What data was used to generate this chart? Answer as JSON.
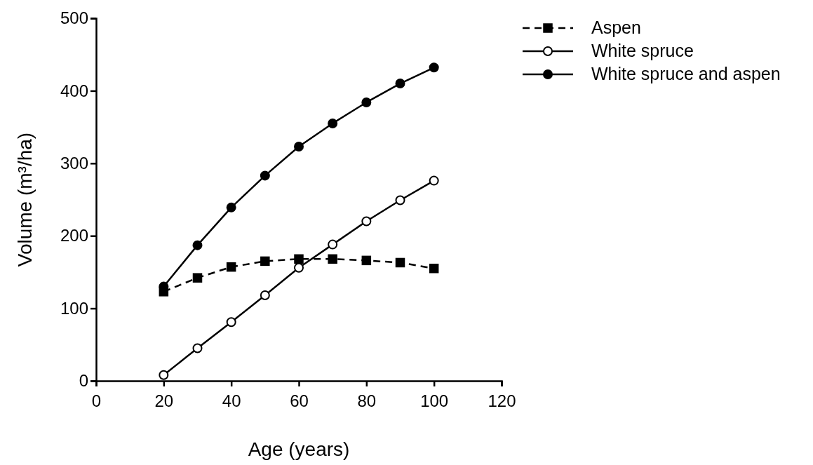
{
  "chart_data": {
    "type": "line",
    "xlabel": "Age (years)",
    "ylabel": "Volume (m³/ha)",
    "x": [
      20,
      30,
      40,
      50,
      60,
      70,
      80,
      90,
      100
    ],
    "xlim": [
      0,
      120
    ],
    "xticks": [
      0,
      20,
      40,
      60,
      80,
      100,
      120
    ],
    "ylim": [
      0,
      500
    ],
    "yticks": [
      0,
      100,
      200,
      300,
      400,
      500
    ],
    "legend": "top right",
    "grid": false,
    "series": [
      {
        "name": "Aspen",
        "color": "#000000",
        "line_style": "dashed",
        "marker": "square",
        "values": [
          123,
          142,
          157,
          165,
          168,
          168,
          166,
          163,
          155
        ]
      },
      {
        "name": "White spruce",
        "color": "#000000",
        "line_style": "solid",
        "marker": "circle",
        "colors": [
          "#ffffff",
          "#ffffff",
          "#ffffff",
          "#ffffff",
          "#ffffff",
          "#ffffff",
          "#ffffff",
          "#ffffff",
          "#ffffff"
        ],
        "values": [
          8,
          45,
          81,
          118,
          156,
          188,
          220,
          249,
          276
        ]
      },
      {
        "name": "White spruce and aspen",
        "color": "#000000",
        "line_style": "solid",
        "marker": "circle",
        "values": [
          130,
          187,
          239,
          283,
          323,
          355,
          384,
          410,
          432
        ]
      }
    ]
  }
}
